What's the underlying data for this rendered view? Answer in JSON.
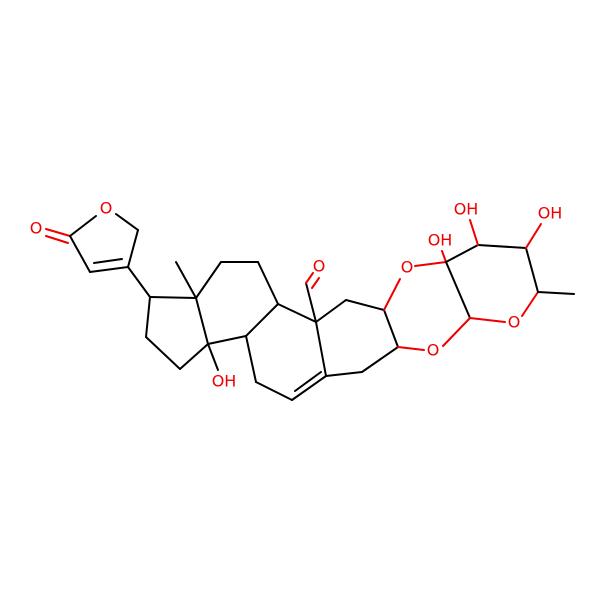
{
  "labels": [
    "O",
    "O",
    "O",
    "O",
    "O",
    "O",
    "OH",
    "OH",
    "OH",
    "OH"
  ]
}
